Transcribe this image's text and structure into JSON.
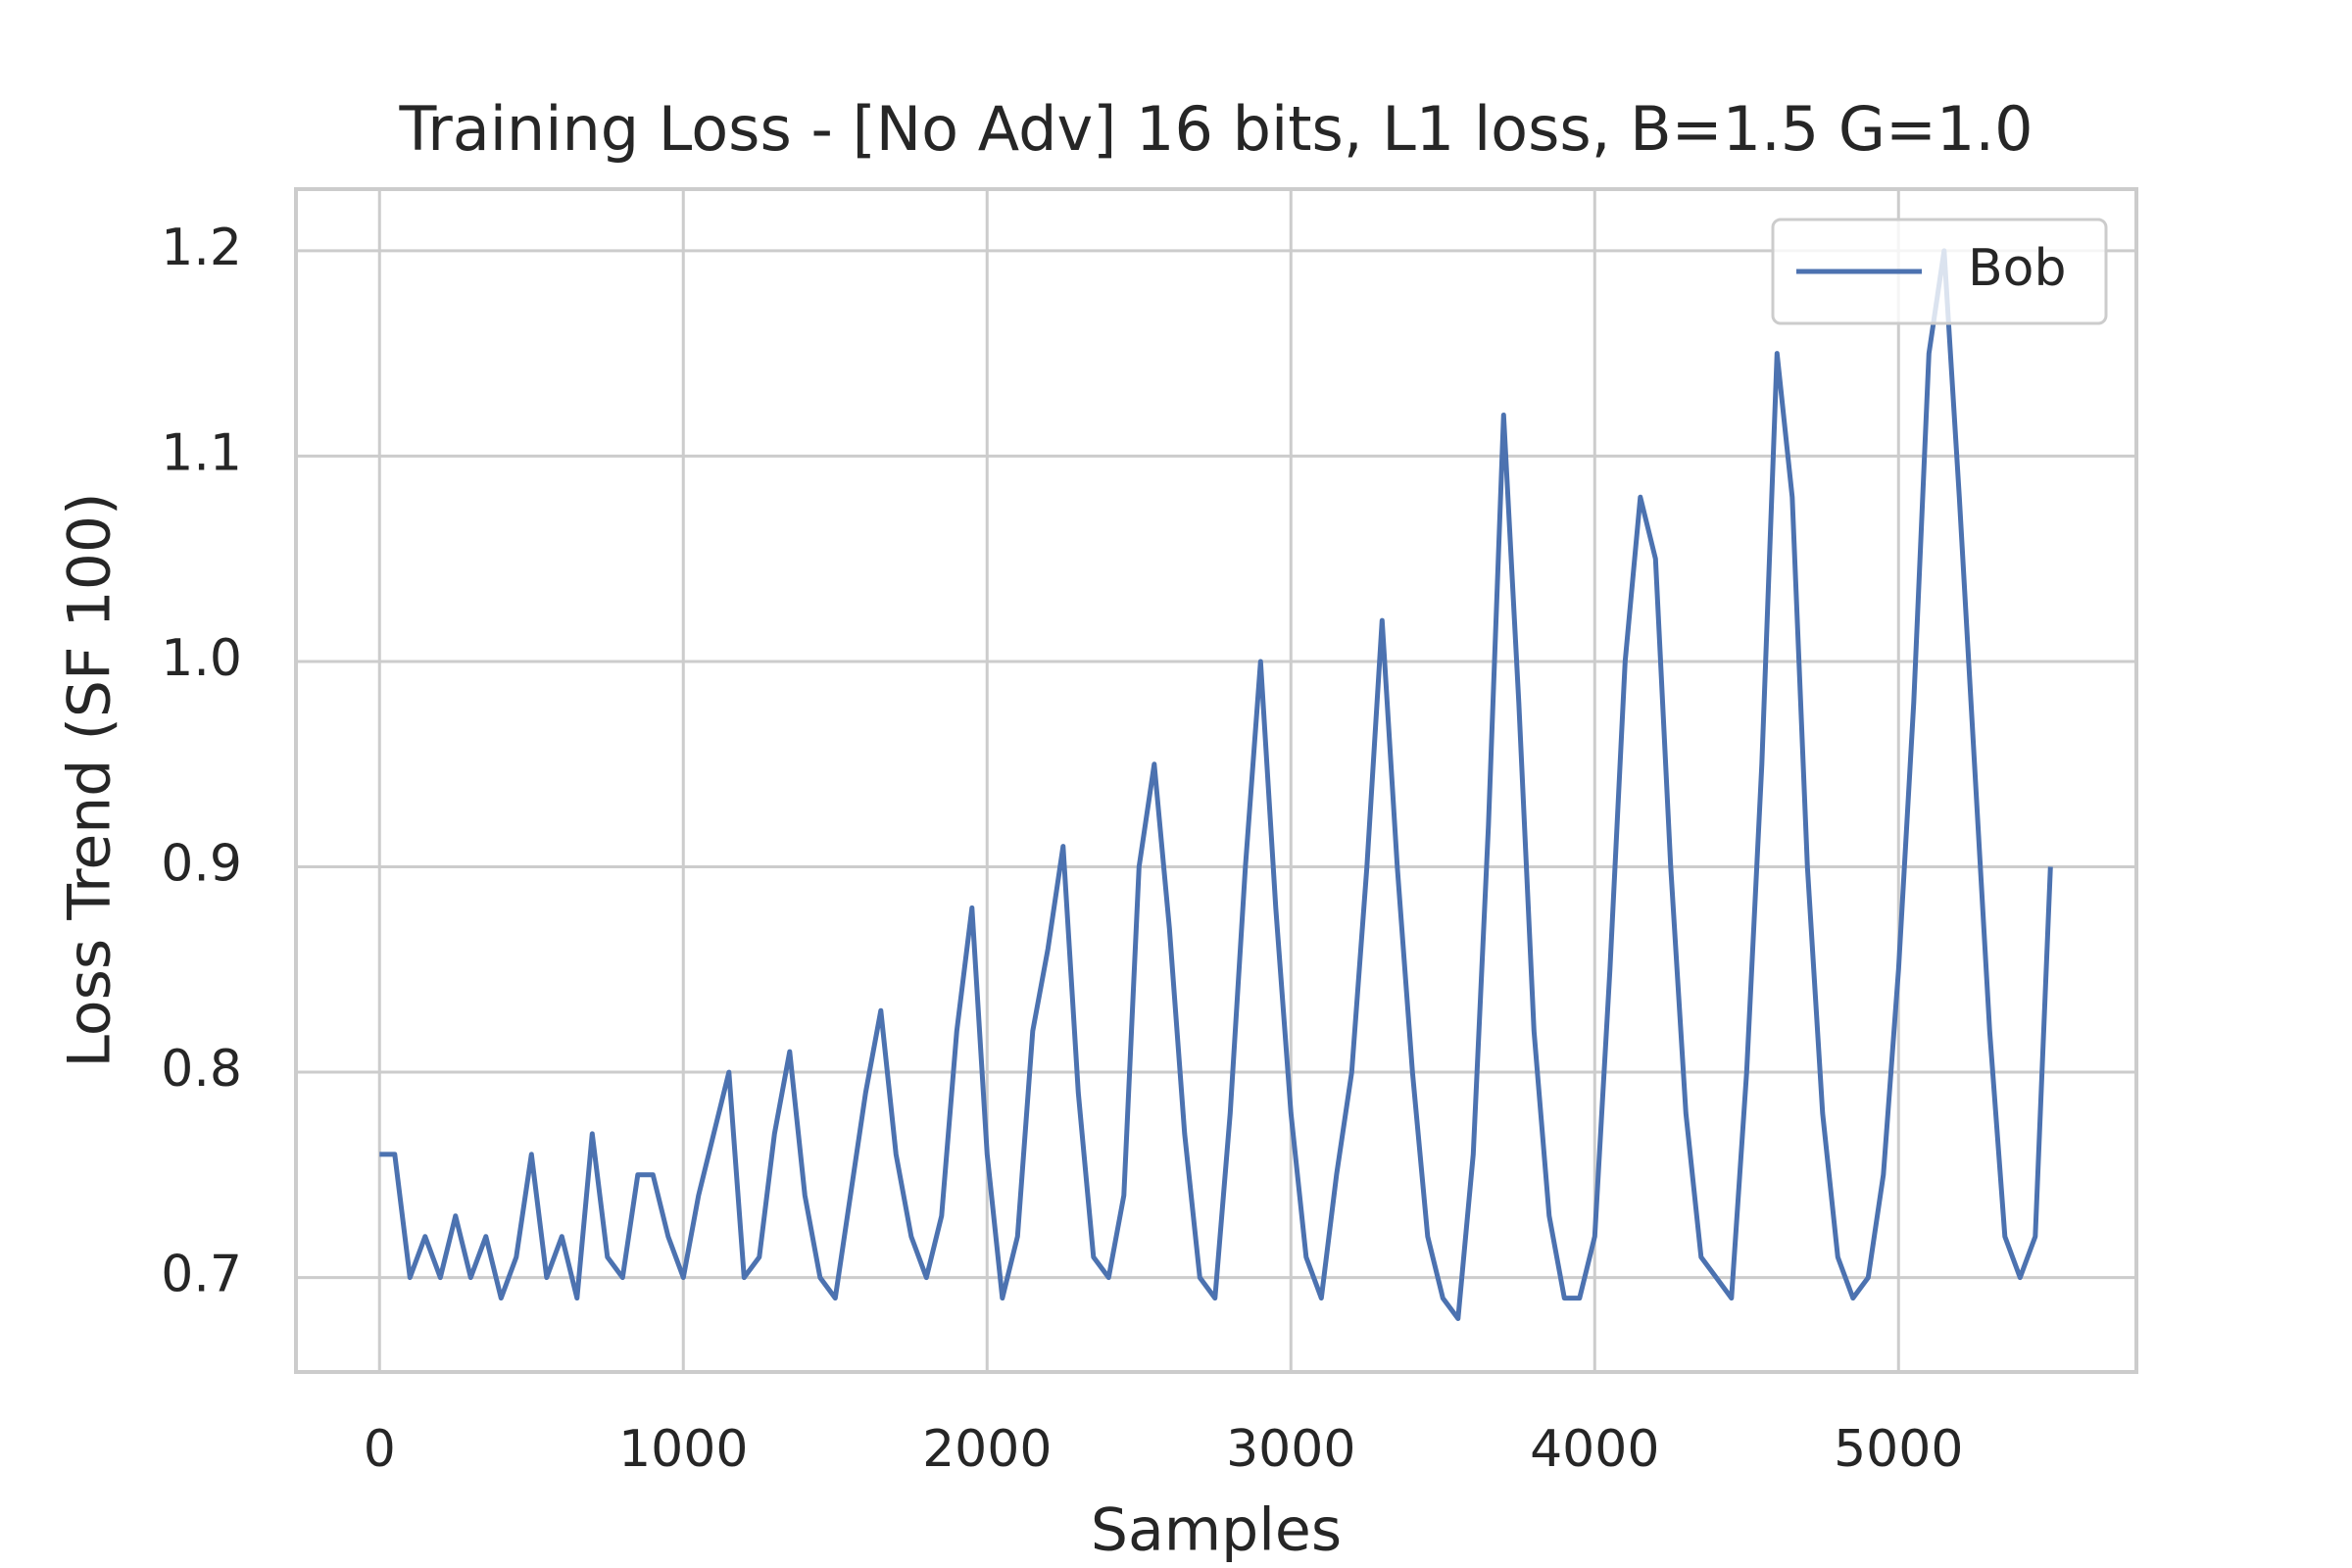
{
  "chart_data": {
    "type": "line",
    "title": "Training Loss - [No Adv] 16 bits, L1 loss, B=1.5 G=1.0",
    "x_label": "Samples",
    "y_label": "Loss Trend (SF 100)",
    "x": [
      0,
      50,
      100,
      150,
      200,
      250,
      300,
      350,
      400,
      450,
      500,
      550,
      600,
      650,
      700,
      750,
      800,
      850,
      900,
      950,
      1000,
      1050,
      1100,
      1150,
      1200,
      1250,
      1300,
      1350,
      1400,
      1450,
      1500,
      1550,
      1600,
      1650,
      1700,
      1750,
      1800,
      1850,
      1900,
      1950,
      2000,
      2050,
      2100,
      2150,
      2200,
      2250,
      2300,
      2350,
      2400,
      2450,
      2500,
      2550,
      2600,
      2650,
      2700,
      2750,
      2800,
      2850,
      2900,
      2950,
      3000,
      3050,
      3100,
      3150,
      3200,
      3250,
      3300,
      3350,
      3400,
      3450,
      3500,
      3550,
      3600,
      3650,
      3700,
      3750,
      3800,
      3850,
      3900,
      3950,
      4000,
      4050,
      4100,
      4150,
      4200,
      4250,
      4300,
      4350,
      4400,
      4450,
      4500,
      4550,
      4600,
      4650,
      4700,
      4750,
      4800,
      4850,
      4900,
      4950,
      5000,
      5050,
      5100,
      5150,
      5200,
      5250,
      5300,
      5350,
      5400,
      5450,
      5500
    ],
    "series": [
      {
        "name": "Bob",
        "color": "#4c72b0",
        "values": [
          0.76,
          0.76,
          0.7,
          0.72,
          0.7,
          0.73,
          0.7,
          0.72,
          0.69,
          0.71,
          0.76,
          0.7,
          0.72,
          0.69,
          0.77,
          0.71,
          0.7,
          0.75,
          0.75,
          0.72,
          0.7,
          0.74,
          0.77,
          0.8,
          0.7,
          0.71,
          0.77,
          0.81,
          0.74,
          0.7,
          0.69,
          0.74,
          0.79,
          0.83,
          0.76,
          0.72,
          0.7,
          0.73,
          0.82,
          0.88,
          0.76,
          0.69,
          0.72,
          0.82,
          0.86,
          0.91,
          0.79,
          0.71,
          0.7,
          0.74,
          0.9,
          0.95,
          0.87,
          0.77,
          0.7,
          0.69,
          0.78,
          0.9,
          1.0,
          0.88,
          0.78,
          0.71,
          0.69,
          0.75,
          0.8,
          0.9,
          1.02,
          0.9,
          0.8,
          0.72,
          0.69,
          0.68,
          0.76,
          0.92,
          1.12,
          0.98,
          0.82,
          0.73,
          0.69,
          0.69,
          0.72,
          0.85,
          1.0,
          1.08,
          1.05,
          0.9,
          0.78,
          0.71,
          0.7,
          0.69,
          0.8,
          0.95,
          1.15,
          1.08,
          0.9,
          0.78,
          0.71,
          0.69,
          0.7,
          0.75,
          0.85,
          0.98,
          1.15,
          1.2,
          1.08,
          0.95,
          0.82,
          0.72,
          0.7,
          0.72,
          0.9
        ]
      }
    ],
    "xlim": [
      -275,
      5783
    ],
    "ylim": [
      0.654,
      1.23
    ],
    "xticks": [
      0,
      1000,
      2000,
      3000,
      4000,
      5000
    ],
    "yticks": [
      0.7,
      0.8,
      0.9,
      {
        "value": 1,
        "label": "1.0"
      },
      1.1,
      1.2
    ],
    "grid": true,
    "legend": "upper right"
  }
}
